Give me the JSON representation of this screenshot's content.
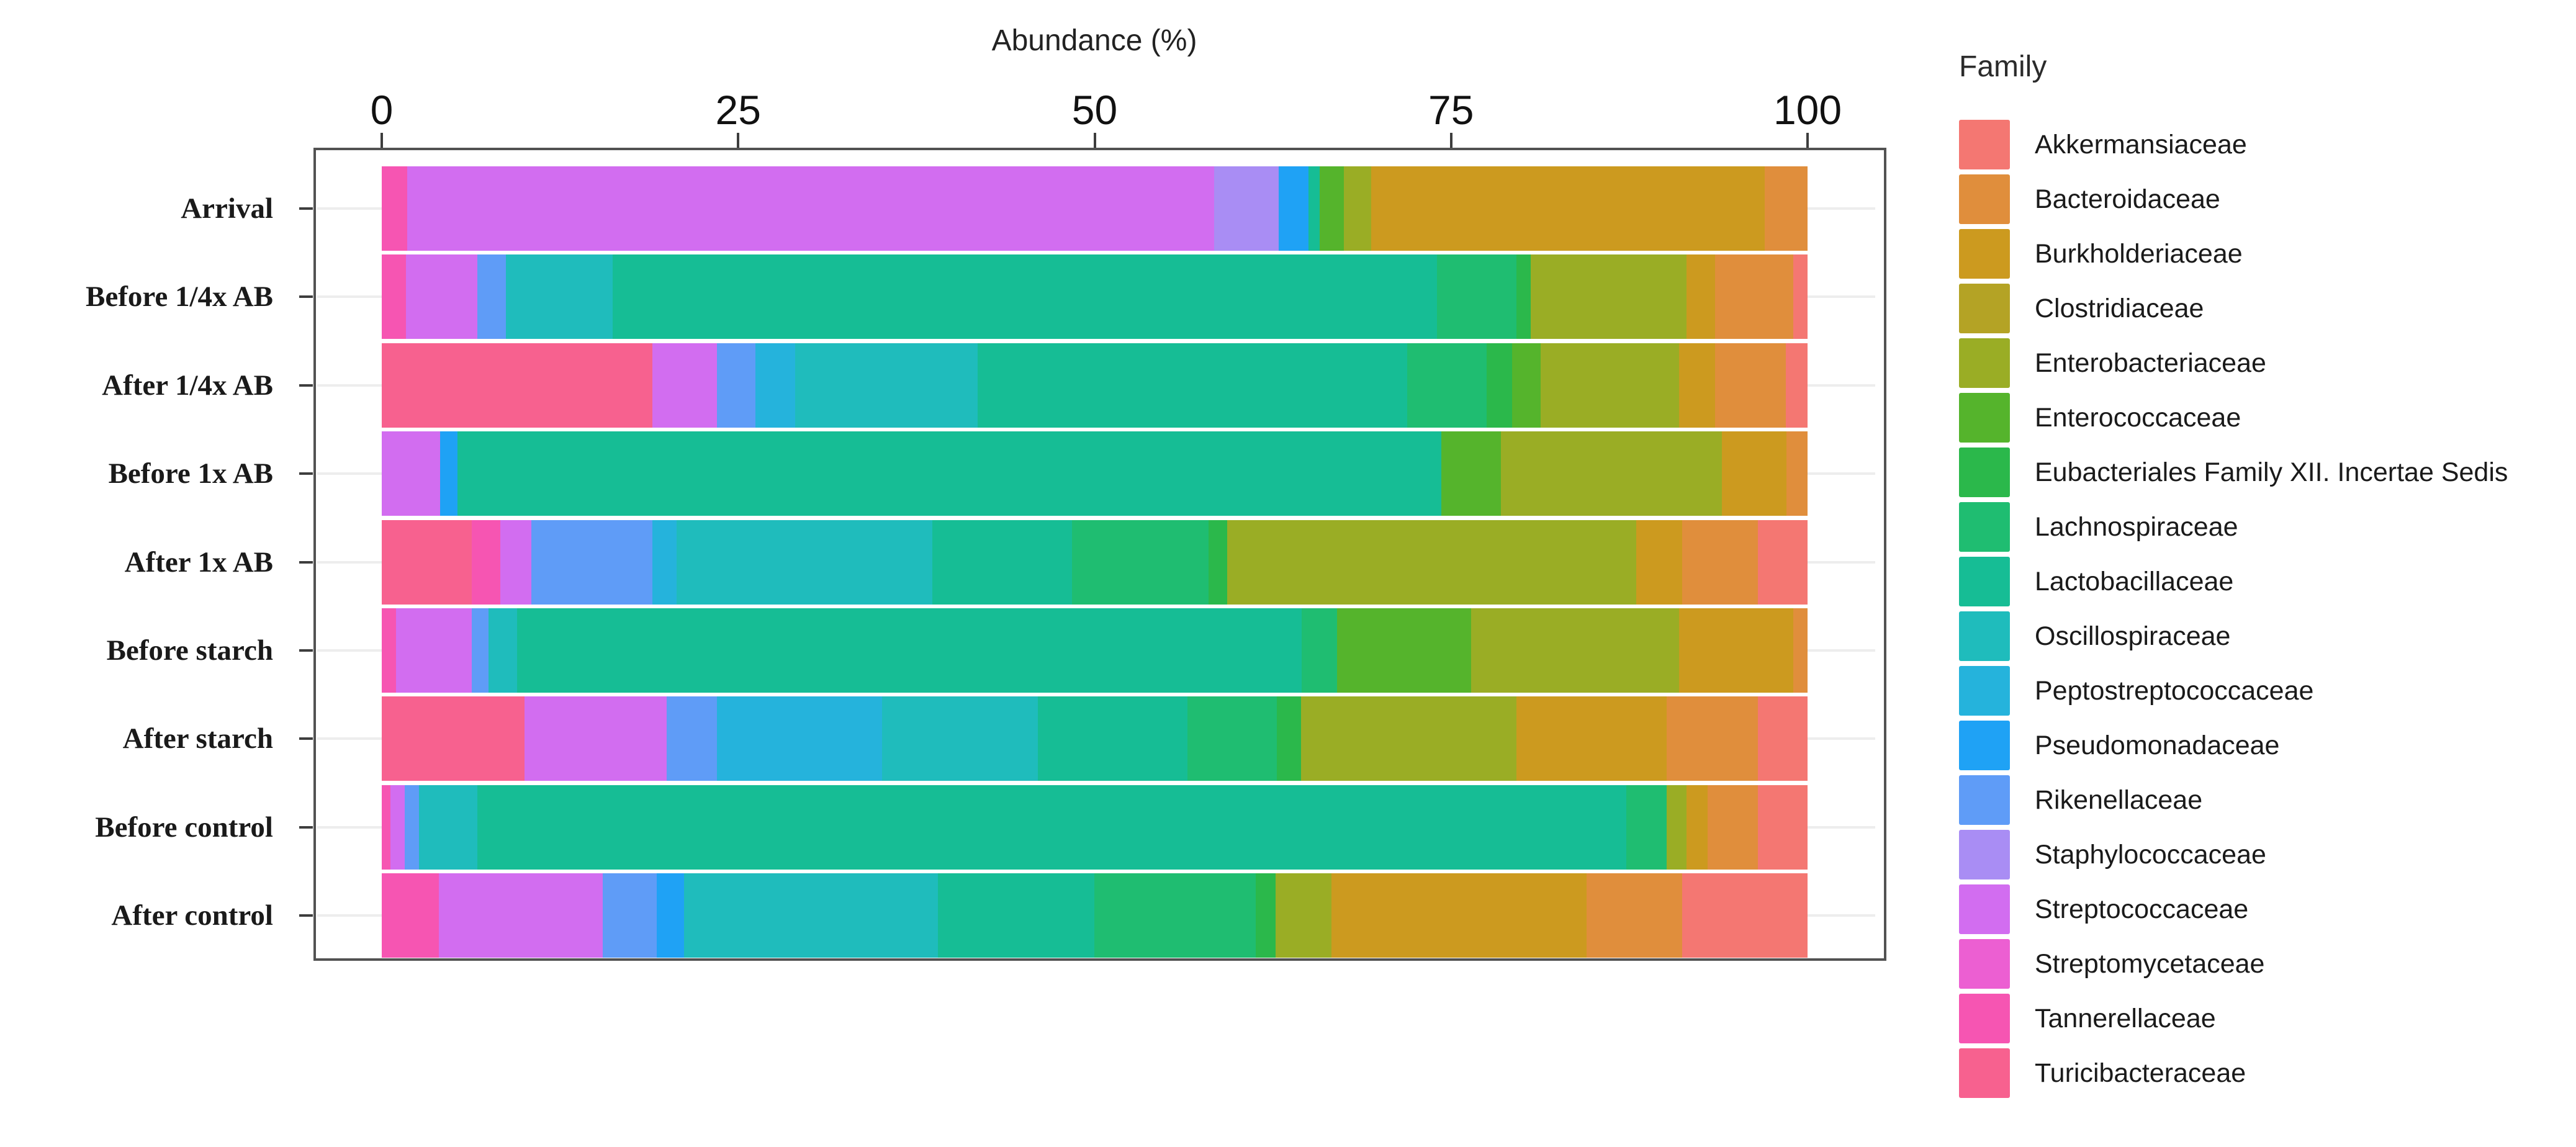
{
  "chart_data": {
    "type": "bar",
    "stacked": true,
    "orientation": "horizontal",
    "title": "Abundance (%)",
    "xlabel": "Abundance (%)",
    "ylabel": "",
    "xlim": [
      0,
      100
    ],
    "x_ticks": [
      0,
      25,
      50,
      75,
      100
    ],
    "grid": "faint horizontal lines per row",
    "legend_position": "right",
    "legend_title": "Family",
    "panel_border_color": "#525252",
    "categories": [
      "Arrival",
      "Before 1/4x AB",
      "After 1/4x AB",
      "Before 1x AB",
      "After 1x AB",
      "Before starch",
      "After starch",
      "Before control",
      "After control"
    ],
    "stack_order_note": "segments stack left-to-right in reverse alphabetical family order",
    "series": [
      {
        "name": "Akkermansiaceae",
        "color": "#F47772",
        "values": [
          0,
          1.0,
          1.5,
          0,
          3.5,
          0,
          3.5,
          3.5,
          8.8
        ]
      },
      {
        "name": "Bacteroidaceae",
        "color": "#E08E3C",
        "values": [
          3.0,
          5.5,
          5.0,
          1.5,
          5.3,
          1.0,
          6.4,
          3.5,
          6.7
        ]
      },
      {
        "name": "Burkholderiaceae",
        "color": "#CC9A1F",
        "values": [
          27.6,
          2.0,
          2.5,
          4.5,
          3.2,
          8.0,
          10.5,
          1.5,
          17.9
        ]
      },
      {
        "name": "Clostridiaceae",
        "color": "#B4A325",
        "values": [
          0,
          0,
          0,
          0,
          0,
          0,
          0,
          0,
          0
        ]
      },
      {
        "name": "Enterobacteriaceae",
        "color": "#9AAD25",
        "values": [
          1.9,
          10.9,
          9.7,
          15.5,
          28.7,
          14.6,
          15.1,
          1.4,
          3.9
        ]
      },
      {
        "name": "Enterococcaceae",
        "color": "#55B42C",
        "values": [
          1.7,
          0,
          2.0,
          4.2,
          0,
          9.4,
          0,
          0,
          0
        ]
      },
      {
        "name": "Eubacteriales Family XII. Incertae Sedis",
        "color": "#2BB84B",
        "values": [
          0,
          1.0,
          1.8,
          0,
          1.3,
          0,
          1.7,
          0,
          1.4
        ]
      },
      {
        "name": "Lachnospiraceae",
        "color": "#1FBD71",
        "values": [
          0,
          5.6,
          5.6,
          0,
          9.6,
          2.5,
          6.3,
          2.8,
          11.3
        ]
      },
      {
        "name": "Lactobacillaceae",
        "color": "#16BD95",
        "values": [
          0.8,
          57.8,
          30.1,
          69.0,
          9.8,
          55.0,
          10.5,
          80.6,
          11.0
        ]
      },
      {
        "name": "Oscillospiraceae",
        "color": "#1FBCBC",
        "values": [
          0,
          7.5,
          12.8,
          0,
          17.9,
          2.0,
          10.9,
          4.1,
          17.8
        ]
      },
      {
        "name": "Peptostreptococcaceae",
        "color": "#25B3DC",
        "values": [
          0,
          0,
          2.8,
          0,
          1.7,
          0,
          11.6,
          0,
          0
        ]
      },
      {
        "name": "Pseudomonadaceae",
        "color": "#1FA2F5",
        "values": [
          2.1,
          0,
          0,
          1.2,
          0,
          0,
          0,
          0,
          1.9
        ]
      },
      {
        "name": "Rikenellaceae",
        "color": "#5F9CF7",
        "values": [
          0,
          2.0,
          2.7,
          0,
          8.5,
          1.2,
          3.5,
          1.0,
          3.8
        ]
      },
      {
        "name": "Staphylococcaceae",
        "color": "#A98DF4",
        "values": [
          4.5,
          0,
          0,
          0,
          0,
          0,
          0,
          0,
          0
        ]
      },
      {
        "name": "Streptococcaceae",
        "color": "#D26DF0",
        "values": [
          56.6,
          5.0,
          4.5,
          4.1,
          2.2,
          5.3,
          10.0,
          1.0,
          11.5
        ]
      },
      {
        "name": "Streptomycetaceae",
        "color": "#EC5FD2",
        "values": [
          0,
          0,
          0,
          0,
          0,
          0,
          0,
          0,
          0
        ]
      },
      {
        "name": "Tannerellaceae",
        "color": "#F655B2",
        "values": [
          1.8,
          1.7,
          0,
          0,
          2.0,
          1.0,
          0,
          0.6,
          4.0
        ]
      },
      {
        "name": "Turicibacteraceae",
        "color": "#F7618F",
        "values": [
          0,
          0,
          19.0,
          0,
          6.3,
          0,
          10.0,
          0,
          0
        ]
      }
    ]
  },
  "legend": {
    "title": "Family"
  }
}
